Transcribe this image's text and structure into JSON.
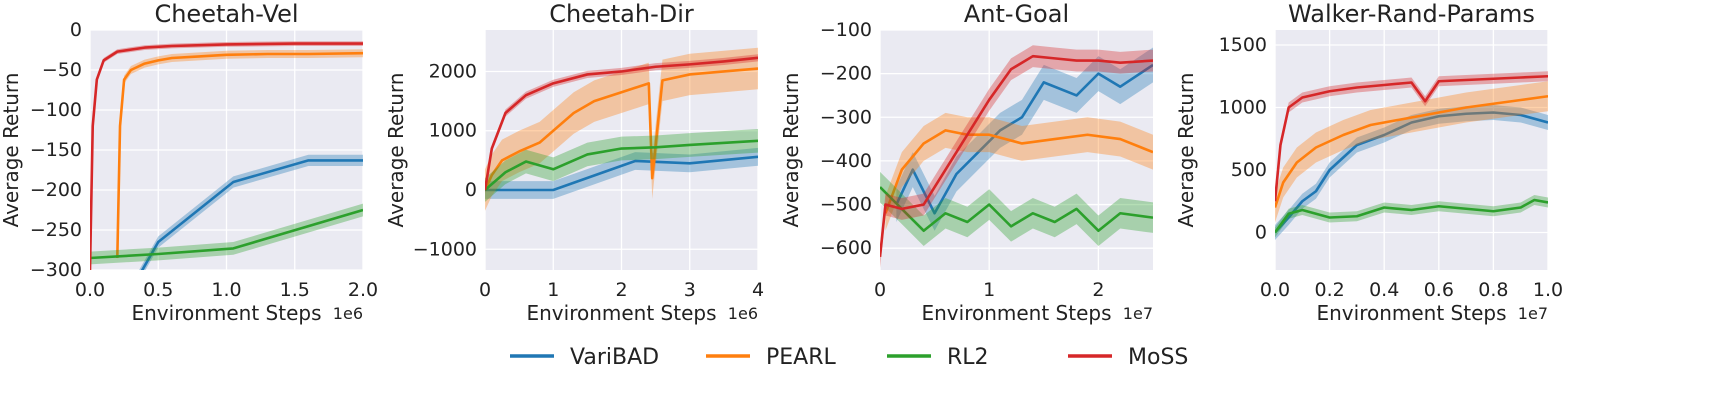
{
  "chart_data": [
    {
      "type": "line",
      "title": "Cheetah-Vel",
      "xlabel": "Environment Steps",
      "ylabel": "Average Return",
      "x_exponent": "1e6",
      "xlim": [
        0,
        2.0
      ],
      "ylim": [
        -300,
        0
      ],
      "xticks": [
        0.0,
        0.5,
        1.0,
        1.5,
        2.0
      ],
      "xtick_labels": [
        "0.0",
        "0.5",
        "1.0",
        "1.5",
        "2.0"
      ],
      "yticks": [
        -300,
        -250,
        -200,
        -150,
        -100,
        -50,
        0
      ],
      "ytick_labels": [
        "−300",
        "−250",
        "−200",
        "−150",
        "−100",
        "−50",
        "0"
      ],
      "series": [
        {
          "name": "VariBAD",
          "x": [
            0.35,
            0.5,
            1.05,
            1.6,
            2.0
          ],
          "y": [
            -310,
            -265,
            -190,
            -163,
            -163
          ],
          "band": 7
        },
        {
          "name": "PEARL",
          "x": [
            0.2,
            0.22,
            0.25,
            0.3,
            0.4,
            0.5,
            0.6,
            0.8,
            1.0,
            1.3,
            1.6,
            2.0
          ],
          "y": [
            -285,
            -120,
            -62,
            -50,
            -42,
            -38,
            -35,
            -33,
            -31,
            -30,
            -30,
            -29
          ],
          "band": 5
        },
        {
          "name": "RL2",
          "x": [
            0.0,
            0.5,
            1.05,
            2.0
          ],
          "y": [
            -285,
            -280,
            -273,
            -225
          ],
          "band": 8
        },
        {
          "name": "MoSS",
          "x": [
            0.0,
            0.02,
            0.05,
            0.1,
            0.2,
            0.4,
            0.6,
            1.0,
            1.5,
            2.0
          ],
          "y": [
            -300,
            -120,
            -62,
            -38,
            -27,
            -22,
            -20,
            -18,
            -17,
            -17
          ],
          "band": 3
        }
      ]
    },
    {
      "type": "line",
      "title": "Cheetah-Dir",
      "xlabel": "Environment Steps",
      "ylabel": "Average Return",
      "x_exponent": "1e6",
      "xlim": [
        0,
        4
      ],
      "ylim": [
        -1350,
        2700
      ],
      "xticks": [
        0,
        1,
        2,
        3,
        4
      ],
      "xtick_labels": [
        "0",
        "1",
        "2",
        "3",
        "4"
      ],
      "yticks": [
        -1000,
        0,
        1000,
        2000
      ],
      "ytick_labels": [
        "−1000",
        "0",
        "1000",
        "2000"
      ],
      "series": [
        {
          "name": "VariBAD",
          "x": [
            0,
            1.0,
            2.2,
            3.0,
            4.0
          ],
          "y": [
            0,
            0,
            490,
            450,
            560
          ],
          "band": 150
        },
        {
          "name": "PEARL",
          "x": [
            0,
            0.1,
            0.25,
            0.5,
            0.8,
            1.0,
            1.3,
            1.6,
            2.0,
            2.4,
            2.45,
            2.6,
            3.0,
            3.5,
            4.0
          ],
          "y": [
            0,
            250,
            500,
            650,
            800,
            1000,
            1300,
            1500,
            1650,
            1800,
            200,
            1850,
            1950,
            2000,
            2050
          ],
          "band": 350
        },
        {
          "name": "RL2",
          "x": [
            0,
            0.3,
            0.6,
            1.0,
            1.5,
            2.0,
            2.5,
            3.0,
            4.0
          ],
          "y": [
            0,
            300,
            480,
            350,
            600,
            700,
            720,
            760,
            830
          ],
          "band": 200
        },
        {
          "name": "MoSS",
          "x": [
            0,
            0.1,
            0.3,
            0.6,
            1.0,
            1.5,
            2.0,
            2.5,
            3.0,
            3.5,
            4.0
          ],
          "y": [
            0,
            700,
            1300,
            1600,
            1800,
            1950,
            2000,
            2080,
            2120,
            2170,
            2230
          ],
          "band": 60
        }
      ]
    },
    {
      "type": "line",
      "title": "Ant-Goal",
      "xlabel": "Environment Steps",
      "ylabel": "Average Return",
      "x_exponent": "1e7",
      "xlim": [
        0,
        2.5
      ],
      "ylim": [
        -650,
        -100
      ],
      "xticks": [
        0,
        1,
        2
      ],
      "xtick_labels": [
        "0",
        "1",
        "2"
      ],
      "yticks": [
        -600,
        -500,
        -400,
        -300,
        -200,
        -100
      ],
      "ytick_labels": [
        "−600",
        "−500",
        "−400",
        "−300",
        "−200",
        "−100"
      ],
      "series": [
        {
          "name": "VariBAD",
          "x": [
            0.15,
            0.3,
            0.5,
            0.7,
            0.9,
            1.1,
            1.3,
            1.5,
            1.8,
            2.0,
            2.2,
            2.5
          ],
          "y": [
            -500,
            -420,
            -520,
            -430,
            -380,
            -330,
            -300,
            -220,
            -250,
            -200,
            -230,
            -180
          ],
          "band": 40
        },
        {
          "name": "PEARL",
          "x": [
            0.05,
            0.2,
            0.4,
            0.6,
            0.8,
            1.0,
            1.3,
            1.6,
            1.9,
            2.2,
            2.5
          ],
          "y": [
            -520,
            -420,
            -360,
            -330,
            -340,
            -340,
            -360,
            -350,
            -340,
            -350,
            -380
          ],
          "band": 40
        },
        {
          "name": "RL2",
          "x": [
            0.0,
            0.2,
            0.4,
            0.6,
            0.8,
            1.0,
            1.2,
            1.4,
            1.6,
            1.8,
            2.0,
            2.2,
            2.5
          ],
          "y": [
            -460,
            -510,
            -560,
            -520,
            -540,
            -500,
            -550,
            -520,
            -540,
            -510,
            -560,
            -520,
            -530
          ],
          "band": 35
        },
        {
          "name": "MoSS",
          "x": [
            0.0,
            0.05,
            0.2,
            0.4,
            0.6,
            0.8,
            1.0,
            1.2,
            1.4,
            1.6,
            1.8,
            2.0,
            2.2,
            2.5
          ],
          "y": [
            -620,
            -500,
            -510,
            -500,
            -420,
            -340,
            -260,
            -190,
            -160,
            -165,
            -170,
            -170,
            -175,
            -170
          ],
          "band": 25
        }
      ]
    },
    {
      "type": "line",
      "title": "Walker-Rand-Params",
      "xlabel": "Environment Steps",
      "ylabel": "Average Return",
      "x_exponent": "1e7",
      "xlim": [
        0,
        1.0
      ],
      "ylim": [
        -300,
        1620
      ],
      "xticks": [
        0.0,
        0.2,
        0.4,
        0.6,
        0.8,
        1.0
      ],
      "xtick_labels": [
        "0.0",
        "0.2",
        "0.4",
        "0.6",
        "0.8",
        "1.0"
      ],
      "yticks": [
        0,
        500,
        1000,
        1500
      ],
      "ytick_labels": [
        "0",
        "500",
        "1000",
        "1500"
      ],
      "series": [
        {
          "name": "VariBAD",
          "x": [
            0.0,
            0.05,
            0.1,
            0.15,
            0.2,
            0.3,
            0.4,
            0.5,
            0.6,
            0.7,
            0.8,
            0.9,
            1.0
          ],
          "y": [
            0,
            120,
            250,
            330,
            500,
            700,
            780,
            880,
            930,
            950,
            960,
            940,
            880
          ],
          "band": 60
        },
        {
          "name": "PEARL",
          "x": [
            0.0,
            0.03,
            0.08,
            0.15,
            0.25,
            0.35,
            0.5,
            0.6,
            0.7,
            0.8,
            0.9,
            1.0
          ],
          "y": [
            200,
            400,
            560,
            680,
            780,
            860,
            920,
            960,
            1000,
            1030,
            1060,
            1090
          ],
          "band": 120
        },
        {
          "name": "RL2",
          "x": [
            0.0,
            0.05,
            0.1,
            0.2,
            0.3,
            0.4,
            0.5,
            0.6,
            0.7,
            0.8,
            0.9,
            0.95,
            1.0
          ],
          "y": [
            0,
            150,
            180,
            120,
            130,
            200,
            180,
            210,
            190,
            170,
            200,
            260,
            240
          ],
          "band": 40
        },
        {
          "name": "MoSS",
          "x": [
            0.0,
            0.02,
            0.05,
            0.1,
            0.2,
            0.3,
            0.4,
            0.5,
            0.55,
            0.6,
            0.7,
            0.8,
            0.9,
            1.0
          ],
          "y": [
            250,
            700,
            1000,
            1080,
            1130,
            1160,
            1180,
            1200,
            1050,
            1210,
            1220,
            1230,
            1240,
            1250
          ],
          "band": 40
        }
      ]
    }
  ],
  "legend": {
    "items": [
      {
        "label": "VariBAD",
        "color": "#1f77b4"
      },
      {
        "label": "PEARL",
        "color": "#ff7f0e"
      },
      {
        "label": "RL2",
        "color": "#2ca02c"
      },
      {
        "label": "MoSS",
        "color": "#d62728"
      }
    ]
  },
  "colors": {
    "plot_bg": "#eaeaf2",
    "grid": "#ffffff",
    "VariBAD": "#1f77b4",
    "PEARL": "#ff7f0e",
    "RL2": "#2ca02c",
    "MoSS": "#d62728"
  }
}
